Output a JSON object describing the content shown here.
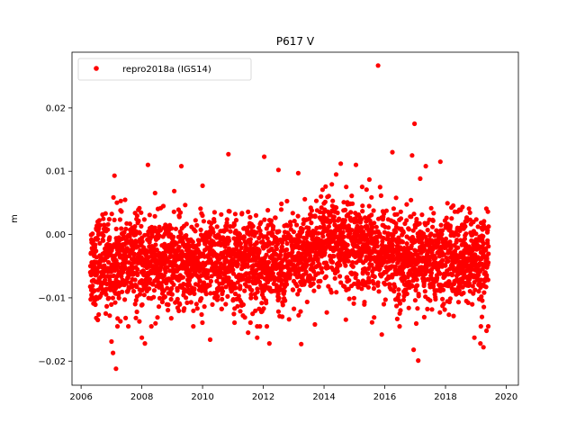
{
  "chart_data": {
    "type": "scatter",
    "title": "P617 V",
    "xlabel": "",
    "ylabel": "m",
    "xlim": [
      2005.7,
      2020.4
    ],
    "ylim": [
      -0.0238,
      0.0288
    ],
    "xticks": [
      2006,
      2008,
      2010,
      2012,
      2014,
      2016,
      2018,
      2020
    ],
    "xtick_labels": [
      "2006",
      "2008",
      "2010",
      "2012",
      "2014",
      "2016",
      "2018",
      "2020"
    ],
    "yticks": [
      -0.02,
      -0.01,
      0.0,
      0.01,
      0.02
    ],
    "ytick_labels": [
      "−0.02",
      "−0.01",
      "0.00",
      "0.01",
      "0.02"
    ],
    "grid": false,
    "legend_position": "top-left",
    "series": [
      {
        "name": "repro2018a (IGS14)",
        "color": "#ff0000",
        "marker": "circle",
        "time_range": [
          2006.3,
          2019.42
        ],
        "outliers": [
          [
            2015.78,
            0.0267
          ],
          [
            2016.98,
            0.0175
          ],
          [
            2010.85,
            0.0127
          ],
          [
            2012.03,
            0.0123
          ],
          [
            2016.25,
            0.013
          ],
          [
            2016.9,
            0.0125
          ],
          [
            2017.35,
            0.0108
          ],
          [
            2017.83,
            0.0115
          ],
          [
            2008.2,
            0.011
          ],
          [
            2009.3,
            0.0108
          ],
          [
            2014.55,
            0.0112
          ],
          [
            2015.05,
            0.011
          ],
          [
            2007.1,
            0.0093
          ],
          [
            2013.15,
            0.0097
          ],
          [
            2010.0,
            0.0077
          ],
          [
            2012.5,
            0.0102
          ],
          [
            2007.15,
            -0.0212
          ],
          [
            2007.05,
            -0.0187
          ],
          [
            2007.0,
            -0.0169
          ],
          [
            2008.1,
            -0.0172
          ],
          [
            2008.0,
            -0.0163
          ],
          [
            2010.25,
            -0.0166
          ],
          [
            2011.5,
            -0.0155
          ],
          [
            2011.8,
            -0.0163
          ],
          [
            2012.2,
            -0.0172
          ],
          [
            2013.25,
            -0.0173
          ],
          [
            2013.7,
            -0.0142
          ],
          [
            2015.65,
            -0.0131
          ],
          [
            2015.9,
            -0.0158
          ],
          [
            2016.95,
            -0.0182
          ],
          [
            2017.1,
            -0.0199
          ],
          [
            2018.95,
            -0.0163
          ],
          [
            2019.15,
            -0.0172
          ],
          [
            2019.25,
            -0.0178
          ],
          [
            2019.35,
            -0.0152
          ],
          [
            2006.55,
            -0.0135
          ]
        ]
      }
    ]
  }
}
